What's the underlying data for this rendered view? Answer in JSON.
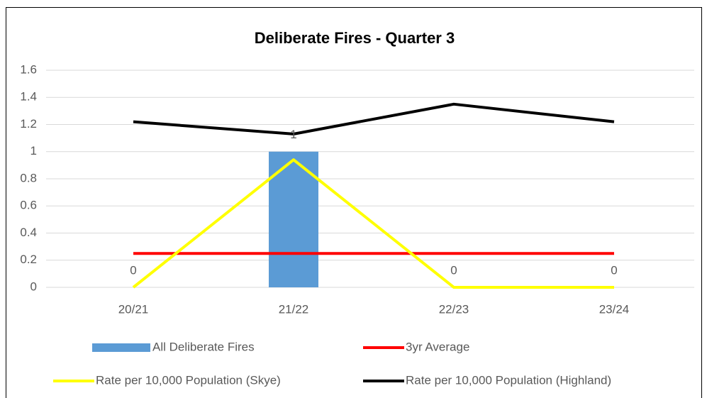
{
  "chart_data": {
    "type": "combo",
    "title": "Deliberate Fires - Quarter 3",
    "categories": [
      "20/21",
      "21/22",
      "22/23",
      "23/24"
    ],
    "series": [
      {
        "name": "All Deliberate Fires",
        "type": "bar",
        "color": "#5b9bd5",
        "values": [
          0,
          1,
          0,
          0
        ],
        "data_labels": true
      },
      {
        "name": "3yr Average",
        "type": "line",
        "color": "#ff0000",
        "values": [
          0.25,
          0.25,
          0.25,
          0.25
        ]
      },
      {
        "name": "Rate per 10,000 Population (Skye)",
        "type": "line",
        "color": "#ffff00",
        "values": [
          0,
          0.94,
          0,
          0
        ]
      },
      {
        "name": "Rate per 10,000 Population (Highland)",
        "type": "line",
        "color": "#000000",
        "values": [
          1.22,
          1.13,
          1.35,
          1.22
        ]
      }
    ],
    "ylim": [
      0,
      1.6
    ],
    "yticks": [
      0,
      0.2,
      0.4,
      0.6,
      0.8,
      1,
      1.2,
      1.4,
      1.6
    ],
    "grid": true,
    "legend": "bottom"
  }
}
